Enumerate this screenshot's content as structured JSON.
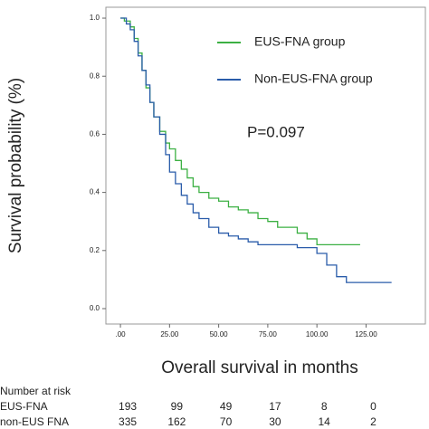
{
  "chart_data": {
    "type": "step",
    "y_label": "Survival probability (%)",
    "x_label": "Overall survival in months",
    "annotation": "P=0.097",
    "xlim": [
      -7.4,
      155.2
    ],
    "ylim": [
      -0.053,
      1.0375
    ],
    "xticks": [
      {
        "value": 0,
        "label": ".00"
      },
      {
        "value": 25,
        "label": "25.00"
      },
      {
        "value": 50,
        "label": "50.00"
      },
      {
        "value": 75,
        "label": "75.00"
      },
      {
        "value": 100,
        "label": "100.00"
      },
      {
        "value": 125,
        "label": "125.00"
      }
    ],
    "yticks": [
      {
        "value": 0,
        "label": "0.0"
      },
      0.2,
      0.4,
      0.6,
      0.8,
      {
        "value": 1,
        "label": "1.0"
      }
    ],
    "series": [
      {
        "name": "EUS-FNA group",
        "color": "#3cb043",
        "x": [
          0,
          2,
          5,
          7,
          9,
          11,
          13,
          15,
          17,
          20,
          23,
          25,
          28,
          31,
          34,
          37,
          40,
          45,
          50,
          55,
          60,
          65,
          70,
          75,
          80,
          90,
          95,
          100,
          122
        ],
        "values": [
          1.0,
          0.99,
          0.97,
          0.93,
          0.88,
          0.82,
          0.76,
          0.71,
          0.66,
          0.61,
          0.57,
          0.55,
          0.51,
          0.48,
          0.45,
          0.42,
          0.4,
          0.38,
          0.37,
          0.35,
          0.34,
          0.33,
          0.31,
          0.3,
          0.28,
          0.26,
          0.24,
          0.22,
          0.22
        ]
      },
      {
        "name": "Non-EUS-FNA group",
        "color": "#2a5caa",
        "x": [
          0,
          3,
          5,
          7,
          9,
          11,
          13,
          15,
          17,
          20,
          23,
          25,
          28,
          31,
          34,
          37,
          40,
          45,
          50,
          55,
          60,
          65,
          70,
          90,
          100,
          105,
          110,
          115,
          138
        ],
        "values": [
          1.0,
          0.98,
          0.96,
          0.92,
          0.87,
          0.82,
          0.77,
          0.71,
          0.66,
          0.6,
          0.53,
          0.47,
          0.43,
          0.39,
          0.36,
          0.33,
          0.31,
          0.28,
          0.26,
          0.25,
          0.24,
          0.23,
          0.22,
          0.21,
          0.19,
          0.15,
          0.11,
          0.09,
          0.09
        ]
      }
    ]
  },
  "risk_table": {
    "title": "Number at risk",
    "rows": [
      {
        "label": "EUS-FNA",
        "counts": [
          "193",
          "99",
          "49",
          "17",
          "8",
          "0"
        ]
      },
      {
        "label": "non-EUS FNA",
        "counts": [
          "335",
          "162",
          "70",
          "30",
          "14",
          "2"
        ]
      }
    ]
  }
}
